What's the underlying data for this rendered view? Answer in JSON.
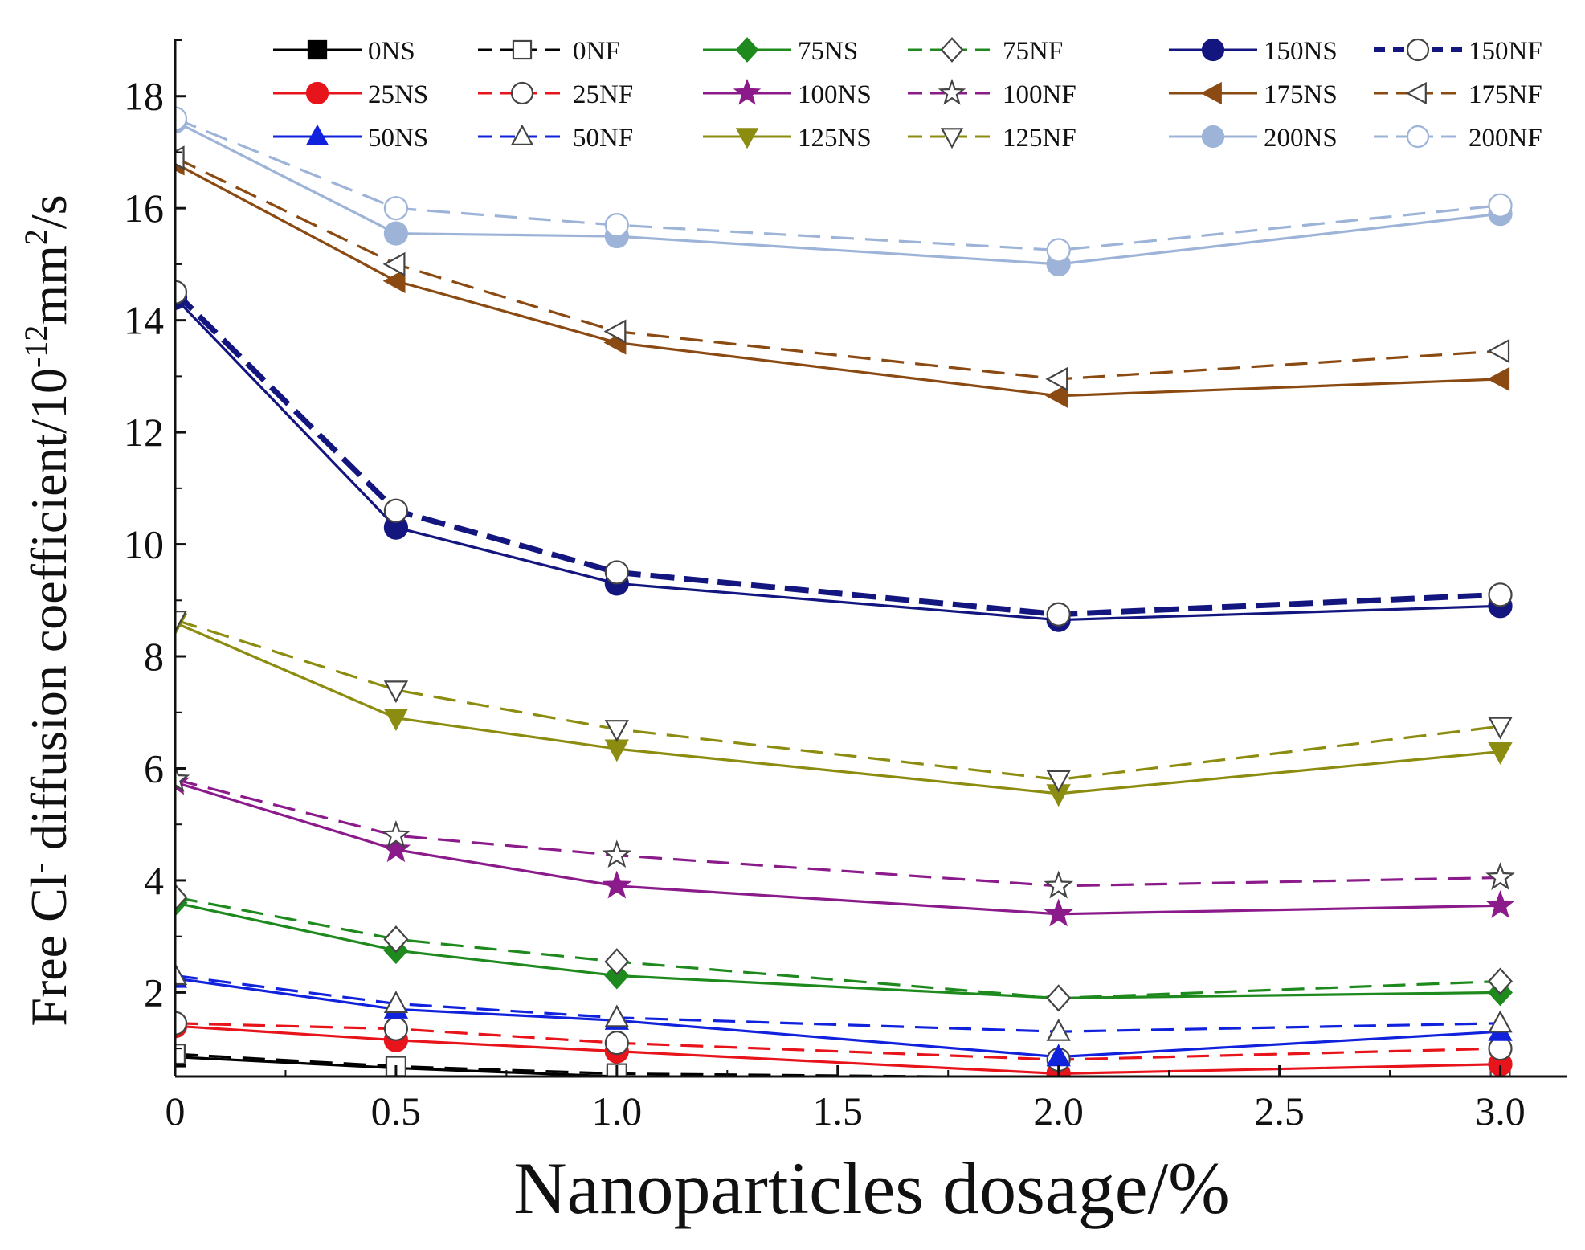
{
  "chart_data": {
    "type": "line",
    "title": "",
    "xlabel": "Nanoparticles dosage/%",
    "ylabel": {
      "prefix": "Free Cl",
      "prefix_sup": "-",
      "middle": " diffusion coefficient/10",
      "exp": "-12",
      "unit": "mm",
      "unit_sup": "2",
      "suffix": "/s"
    },
    "xlim": [
      0,
      3.15
    ],
    "ylim": [
      0.5,
      19
    ],
    "x": [
      0,
      0.5,
      1.0,
      2.0,
      3.0
    ],
    "x_ticks": [
      {
        "value": 0,
        "label": "0"
      },
      {
        "value": 0.5,
        "label": "0.5"
      },
      {
        "value": 1.0,
        "label": "1.0"
      },
      {
        "value": 1.5,
        "label": "1.5"
      },
      {
        "value": 2.0,
        "label": "2.0"
      },
      {
        "value": 2.5,
        "label": "2.5"
      },
      {
        "value": 3.0,
        "label": "3.0"
      }
    ],
    "y_ticks": [
      {
        "value": 2,
        "label": "2"
      },
      {
        "value": 4,
        "label": "4"
      },
      {
        "value": 6,
        "label": "6"
      },
      {
        "value": 8,
        "label": "8"
      },
      {
        "value": 10,
        "label": "10"
      },
      {
        "value": 12,
        "label": "12"
      },
      {
        "value": 14,
        "label": "14"
      },
      {
        "value": 16,
        "label": "16"
      },
      {
        "value": 18,
        "label": "18"
      }
    ],
    "legend_position": "top",
    "series": [
      {
        "name": "0NS",
        "values": [
          0.85,
          0.65,
          0.5,
          0.45,
          0.45
        ],
        "color": "#000000",
        "marker": "square",
        "filled": true,
        "dash": "solid"
      },
      {
        "name": "0NF",
        "values": [
          0.9,
          0.68,
          0.55,
          0.48,
          0.48
        ],
        "color": "#000000",
        "marker": "square",
        "filled": false,
        "dash": "dashed"
      },
      {
        "name": "25NS",
        "values": [
          1.4,
          1.15,
          0.95,
          0.55,
          0.72
        ],
        "color": "#e8141b",
        "marker": "circle",
        "filled": true,
        "dash": "solid"
      },
      {
        "name": "25NF",
        "values": [
          1.45,
          1.35,
          1.1,
          0.8,
          1.0
        ],
        "color": "#e8141b",
        "marker": "circle",
        "filled": false,
        "dash": "dashed"
      },
      {
        "name": "50NS",
        "values": [
          2.25,
          1.7,
          1.5,
          0.85,
          1.3
        ],
        "color": "#1122dd",
        "marker": "triangle-up",
        "filled": true,
        "dash": "solid"
      },
      {
        "name": "50NF",
        "values": [
          2.3,
          1.8,
          1.55,
          1.3,
          1.45
        ],
        "color": "#1122dd",
        "marker": "triangle-up",
        "filled": false,
        "dash": "dashed"
      },
      {
        "name": "75NS",
        "values": [
          3.6,
          2.75,
          2.3,
          1.9,
          2.0
        ],
        "color": "#1e8a1e",
        "marker": "diamond",
        "filled": true,
        "dash": "solid"
      },
      {
        "name": "75NF",
        "values": [
          3.7,
          2.95,
          2.55,
          1.9,
          2.2
        ],
        "color": "#1e8a1e",
        "marker": "diamond",
        "filled": false,
        "dash": "dashed"
      },
      {
        "name": "100NS",
        "values": [
          5.75,
          4.55,
          3.9,
          3.4,
          3.55
        ],
        "color": "#8b1a8b",
        "marker": "star",
        "filled": true,
        "dash": "solid"
      },
      {
        "name": "100NF",
        "values": [
          5.8,
          4.8,
          4.45,
          3.9,
          4.05
        ],
        "color": "#8b1a8b",
        "marker": "star",
        "filled": false,
        "dash": "dashed"
      },
      {
        "name": "125NS",
        "values": [
          8.6,
          6.9,
          6.35,
          5.55,
          6.3
        ],
        "color": "#8c8c10",
        "marker": "triangle-down",
        "filled": true,
        "dash": "solid"
      },
      {
        "name": "125NF",
        "values": [
          8.65,
          7.4,
          6.7,
          5.8,
          6.75
        ],
        "color": "#8c8c10",
        "marker": "triangle-down",
        "filled": false,
        "dash": "dashed"
      },
      {
        "name": "150NS",
        "values": [
          14.4,
          10.3,
          9.3,
          8.65,
          8.9
        ],
        "color": "#141680",
        "marker": "circle",
        "filled": true,
        "dash": "solid"
      },
      {
        "name": "150NF",
        "values": [
          14.5,
          10.6,
          9.5,
          8.75,
          9.1
        ],
        "color": "#141680",
        "marker": "circle",
        "filled": false,
        "dash": "dashed-bold"
      },
      {
        "name": "175NS",
        "values": [
          16.8,
          14.7,
          13.6,
          12.65,
          12.95
        ],
        "color": "#8a4a12",
        "marker": "triangle-left",
        "filled": true,
        "dash": "solid"
      },
      {
        "name": "175NF",
        "values": [
          16.9,
          15.0,
          13.8,
          12.95,
          13.45
        ],
        "color": "#8a4a12",
        "marker": "triangle-left",
        "filled": false,
        "dash": "dashed"
      },
      {
        "name": "200NS",
        "values": [
          17.55,
          15.55,
          15.5,
          15.0,
          15.9
        ],
        "color": "#9db4d8",
        "marker": "circle",
        "filled": true,
        "dash": "solid"
      },
      {
        "name": "200NF",
        "values": [
          17.6,
          16.0,
          15.7,
          15.25,
          16.05
        ],
        "color": "#9db4d8",
        "marker": "circle",
        "filled": false,
        "dash": "dashed"
      }
    ]
  }
}
